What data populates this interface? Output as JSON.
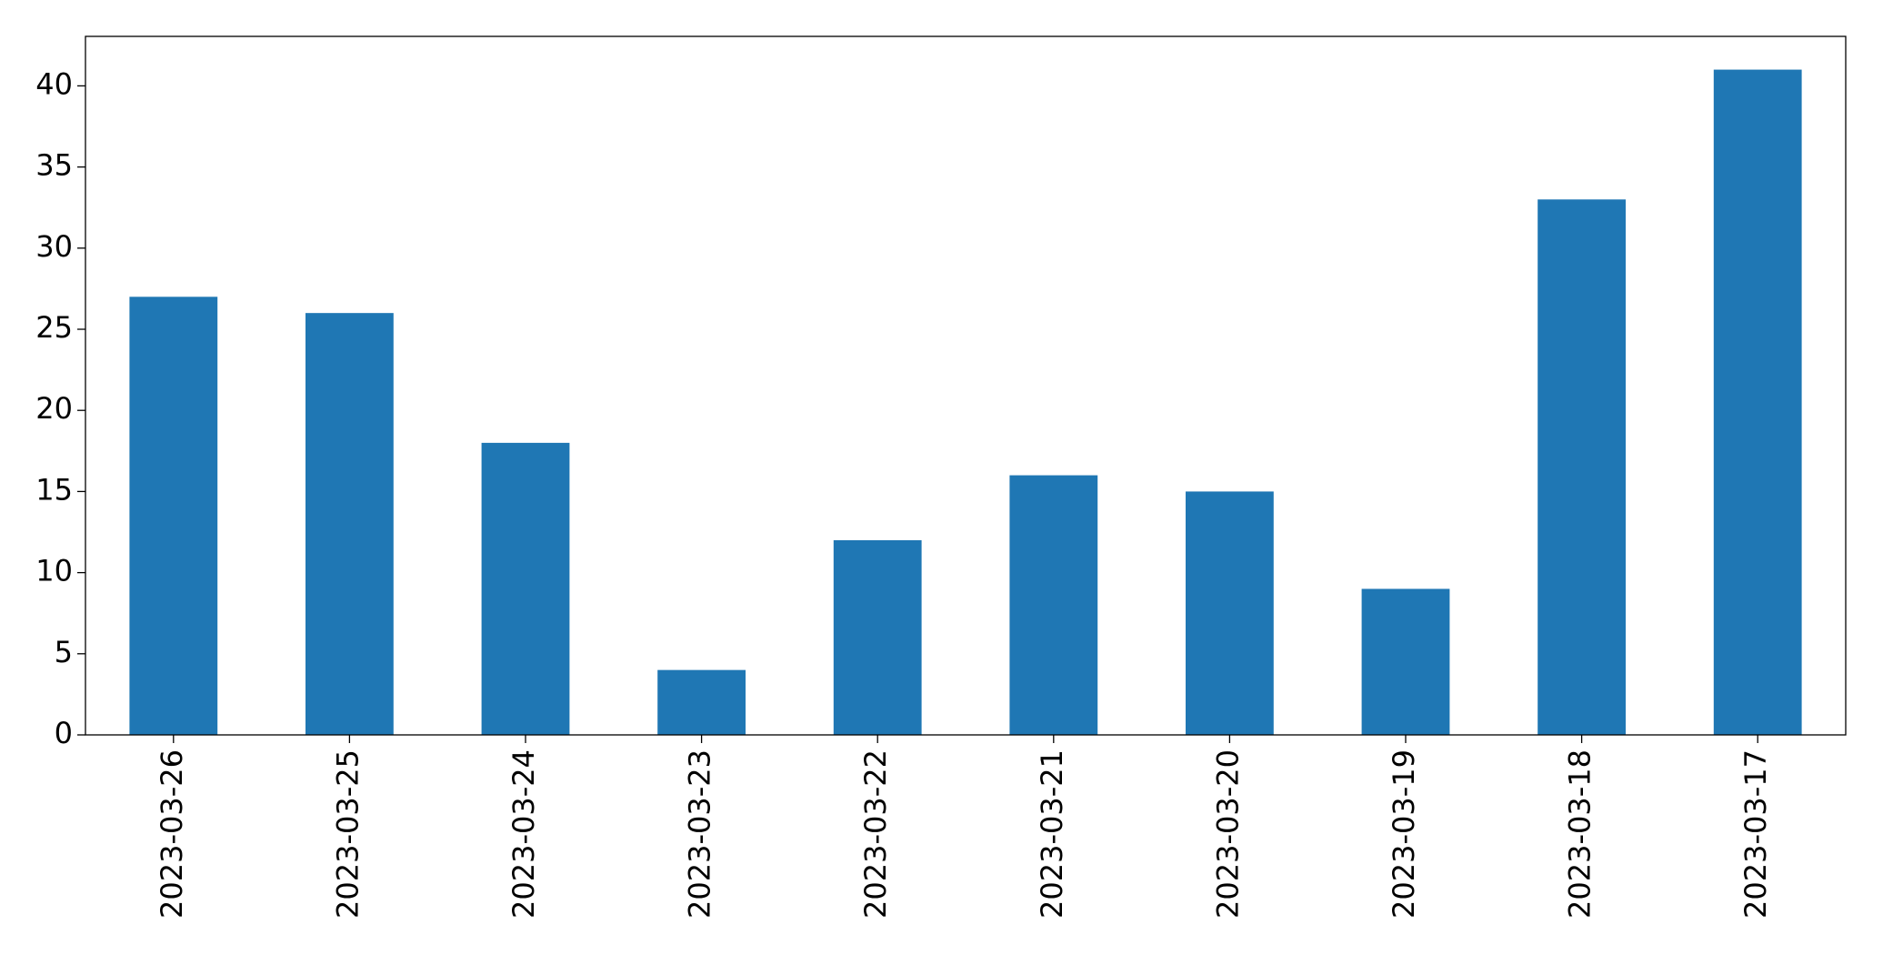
{
  "chart_data": {
    "type": "bar",
    "categories": [
      "2023-03-26",
      "2023-03-25",
      "2023-03-24",
      "2023-03-23",
      "2023-03-22",
      "2023-03-21",
      "2023-03-20",
      "2023-03-19",
      "2023-03-18",
      "2023-03-17"
    ],
    "values": [
      27,
      26,
      18,
      4,
      12,
      16,
      15,
      9,
      33,
      41
    ],
    "color": "#1f77b4",
    "ylim": [
      0,
      43.05
    ],
    "yticks": [
      0,
      5,
      10,
      15,
      20,
      25,
      30,
      35,
      40
    ],
    "grid": false
  }
}
